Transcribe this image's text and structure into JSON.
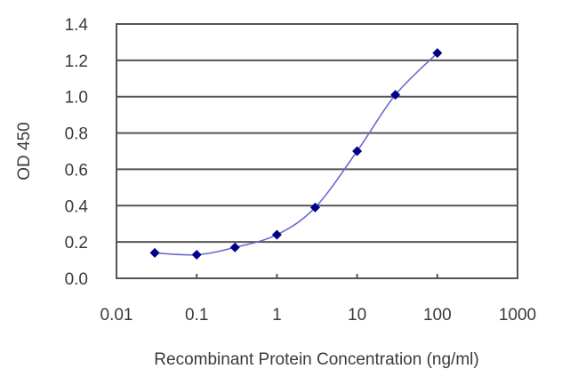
{
  "chart_data": {
    "type": "line",
    "title": "",
    "xlabel": "Recombinant Protein Concentration (ng/ml)",
    "ylabel": "OD 450",
    "x_scale": "log",
    "xlim": [
      0.01,
      1000
    ],
    "ylim": [
      0.0,
      1.4
    ],
    "x_ticks": [
      "0.01",
      "0.1",
      "1",
      "10",
      "100",
      "1000"
    ],
    "y_ticks": [
      "0.0",
      "0.2",
      "0.4",
      "0.6",
      "0.8",
      "1.0",
      "1.2",
      "1.4"
    ],
    "grid": {
      "horizontal": true,
      "vertical": false
    },
    "legend": null,
    "series": [
      {
        "name": "OD 450",
        "marker": "diamond",
        "color": "#00008b",
        "line_color": "#6a6ad0",
        "x": [
          0.03,
          0.1,
          0.3,
          1,
          3,
          10,
          30,
          100
        ],
        "values": [
          0.14,
          0.13,
          0.17,
          0.24,
          0.39,
          0.7,
          1.01,
          1.24
        ]
      }
    ]
  },
  "labels": {
    "xlabel": "Recombinant Protein Concentration (ng/ml)",
    "ylabel": "OD 450"
  }
}
